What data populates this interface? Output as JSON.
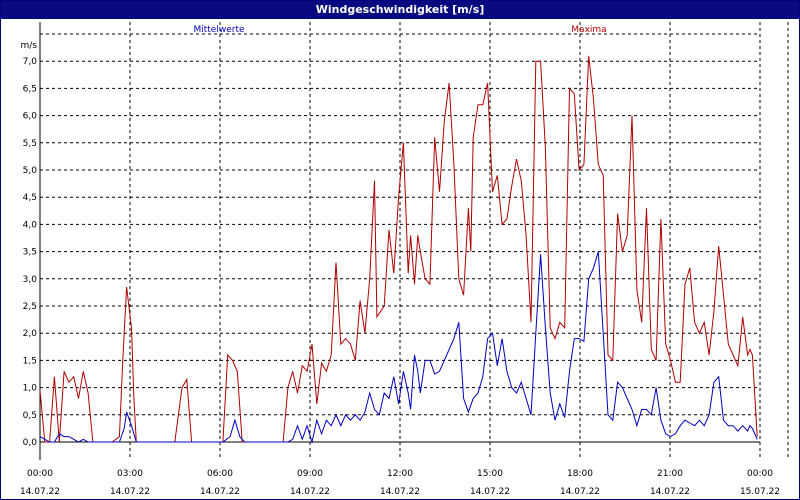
{
  "window": {
    "title": "Windgeschwindigkeit [m/s]"
  },
  "chart_data": {
    "type": "line",
    "title": "Windgeschwindigkeit [m/s]",
    "ylabel": "m/s",
    "ylim": [
      0,
      7.5
    ],
    "xlim": [
      0,
      1440
    ],
    "grid": true,
    "x_tick_positions_min": [
      0,
      180,
      360,
      540,
      720,
      900,
      1080,
      1260,
      1440
    ],
    "y_ticks": [
      "0,0",
      "0,5",
      "1,0",
      "1,5",
      "2,0",
      "2,5",
      "3,0",
      "3,5",
      "4,0",
      "4,5",
      "5,0",
      "5,5",
      "6,0",
      "6,5",
      "7,0"
    ],
    "x_ticks": [
      {
        "time": "00:00",
        "date": "14.07.22"
      },
      {
        "time": "03:00",
        "date": "14.07.22"
      },
      {
        "time": "06:00",
        "date": "14.07.22"
      },
      {
        "time": "09:00",
        "date": "14.07.22"
      },
      {
        "time": "12:00",
        "date": "14.07.22"
      },
      {
        "time": "15:00",
        "date": "14.07.22"
      },
      {
        "time": "18:00",
        "date": "14.07.22"
      },
      {
        "time": "21:00",
        "date": "14.07.22"
      },
      {
        "time": "00:00",
        "date": "15.07.22"
      }
    ],
    "series": [
      {
        "name": "Mittelwerte",
        "color": "#0000c0",
        "points": [
          [
            0,
            0.1
          ],
          [
            10,
            0.05
          ],
          [
            20,
            0.0
          ],
          [
            30,
            0.0
          ],
          [
            40,
            0.15
          ],
          [
            50,
            0.1
          ],
          [
            60,
            0.1
          ],
          [
            70,
            0.05
          ],
          [
            80,
            0.0
          ],
          [
            90,
            0.05
          ],
          [
            100,
            0.0
          ],
          [
            110,
            0.0
          ],
          [
            120,
            0.0
          ],
          [
            150,
            0.0
          ],
          [
            165,
            0.0
          ],
          [
            175,
            0.25
          ],
          [
            180,
            0.55
          ],
          [
            190,
            0.3
          ],
          [
            200,
            0.0
          ],
          [
            220,
            0.0
          ],
          [
            300,
            0.0
          ],
          [
            360,
            0.0
          ],
          [
            380,
            0.0
          ],
          [
            395,
            0.1
          ],
          [
            405,
            0.4
          ],
          [
            415,
            0.1
          ],
          [
            425,
            0.0
          ],
          [
            500,
            0.0
          ],
          [
            515,
            0.0
          ],
          [
            525,
            0.05
          ],
          [
            535,
            0.3
          ],
          [
            545,
            0.05
          ],
          [
            555,
            0.3
          ],
          [
            565,
            0.0
          ],
          [
            575,
            0.4
          ],
          [
            585,
            0.15
          ],
          [
            595,
            0.4
          ],
          [
            605,
            0.3
          ],
          [
            615,
            0.5
          ],
          [
            625,
            0.3
          ],
          [
            635,
            0.5
          ],
          [
            645,
            0.4
          ],
          [
            655,
            0.5
          ],
          [
            665,
            0.4
          ],
          [
            675,
            0.55
          ],
          [
            685,
            0.9
          ],
          [
            695,
            0.6
          ],
          [
            705,
            0.5
          ],
          [
            715,
            0.9
          ],
          [
            725,
            0.8
          ],
          [
            735,
            1.2
          ],
          [
            745,
            0.7
          ],
          [
            755,
            1.3
          ],
          [
            765,
            0.9
          ],
          [
            770,
            0.6
          ],
          [
            778,
            1.6
          ],
          [
            785,
            1.3
          ],
          [
            790,
            0.9
          ],
          [
            800,
            1.5
          ],
          [
            810,
            1.5
          ],
          [
            820,
            1.25
          ],
          [
            830,
            1.3
          ],
          [
            840,
            1.5
          ],
          [
            850,
            1.7
          ],
          [
            860,
            1.9
          ],
          [
            870,
            2.2
          ],
          [
            880,
            0.8
          ],
          [
            890,
            0.55
          ],
          [
            900,
            0.8
          ],
          [
            910,
            0.9
          ],
          [
            920,
            1.2
          ],
          [
            930,
            1.9
          ],
          [
            940,
            2.0
          ],
          [
            950,
            1.4
          ],
          [
            960,
            1.9
          ],
          [
            970,
            1.3
          ],
          [
            980,
            1.0
          ],
          [
            990,
            0.9
          ],
          [
            1000,
            1.1
          ],
          [
            1010,
            0.8
          ],
          [
            1020,
            0.5
          ],
          [
            1030,
            2.0
          ],
          [
            1040,
            3.45
          ],
          [
            1050,
            2.1
          ],
          [
            1060,
            0.9
          ],
          [
            1070,
            0.4
          ],
          [
            1080,
            0.7
          ],
          [
            1090,
            0.45
          ],
          [
            1100,
            1.3
          ],
          [
            1110,
            1.9
          ],
          [
            1120,
            1.9
          ],
          [
            1130,
            1.85
          ],
          [
            1140,
            3.0
          ],
          [
            1150,
            3.2
          ],
          [
            1160,
            3.5
          ],
          [
            1170,
            2.0
          ],
          [
            1180,
            0.5
          ],
          [
            1190,
            0.4
          ],
          [
            1200,
            1.1
          ],
          [
            1210,
            1.0
          ],
          [
            1220,
            0.8
          ],
          [
            1230,
            0.6
          ],
          [
            1240,
            0.3
          ],
          [
            1250,
            0.6
          ],
          [
            1260,
            0.6
          ],
          [
            1270,
            0.5
          ],
          [
            1280,
            1.0
          ],
          [
            1290,
            0.4
          ],
          [
            1300,
            0.15
          ],
          [
            1310,
            0.1
          ],
          [
            1320,
            0.15
          ],
          [
            1330,
            0.3
          ],
          [
            1340,
            0.4
          ],
          [
            1350,
            0.35
          ],
          [
            1360,
            0.3
          ],
          [
            1370,
            0.4
          ],
          [
            1380,
            0.3
          ],
          [
            1390,
            0.5
          ],
          [
            1400,
            1.1
          ],
          [
            1410,
            1.2
          ],
          [
            1420,
            0.4
          ],
          [
            1430,
            0.3
          ],
          [
            1440,
            0.3
          ],
          [
            1450,
            0.2
          ],
          [
            1460,
            0.3
          ],
          [
            1470,
            0.2
          ],
          [
            1475,
            0.3
          ],
          [
            1480,
            0.25
          ],
          [
            1490,
            0.05
          ]
        ]
      },
      {
        "name": "Maxima",
        "color": "#b00000",
        "points": [
          [
            0,
            0.95
          ],
          [
            10,
            0.0
          ],
          [
            20,
            0.0
          ],
          [
            30,
            1.2
          ],
          [
            40,
            0.0
          ],
          [
            50,
            1.3
          ],
          [
            60,
            1.1
          ],
          [
            70,
            1.2
          ],
          [
            80,
            0.8
          ],
          [
            90,
            1.3
          ],
          [
            100,
            0.9
          ],
          [
            110,
            0.0
          ],
          [
            120,
            0.0
          ],
          [
            150,
            0.0
          ],
          [
            165,
            0.1
          ],
          [
            172,
            1.5
          ],
          [
            180,
            2.85
          ],
          [
            190,
            2.1
          ],
          [
            195,
            0.8
          ],
          [
            200,
            0.0
          ],
          [
            220,
            0.0
          ],
          [
            280,
            0.0
          ],
          [
            295,
            1.0
          ],
          [
            305,
            1.15
          ],
          [
            315,
            0.0
          ],
          [
            325,
            0.0
          ],
          [
            380,
            0.0
          ],
          [
            390,
            1.6
          ],
          [
            400,
            1.5
          ],
          [
            410,
            1.3
          ],
          [
            420,
            0.0
          ],
          [
            500,
            0.0
          ],
          [
            505,
            0.0
          ],
          [
            515,
            1.0
          ],
          [
            525,
            1.3
          ],
          [
            535,
            0.9
          ],
          [
            545,
            1.4
          ],
          [
            555,
            1.3
          ],
          [
            565,
            1.8
          ],
          [
            575,
            0.7
          ],
          [
            585,
            1.45
          ],
          [
            595,
            1.3
          ],
          [
            605,
            1.6
          ],
          [
            615,
            3.3
          ],
          [
            625,
            1.8
          ],
          [
            635,
            1.9
          ],
          [
            645,
            1.8
          ],
          [
            655,
            1.5
          ],
          [
            665,
            2.6
          ],
          [
            675,
            2.0
          ],
          [
            685,
            3.0
          ],
          [
            695,
            4.8
          ],
          [
            700,
            2.3
          ],
          [
            715,
            2.5
          ],
          [
            725,
            3.9
          ],
          [
            735,
            3.1
          ],
          [
            745,
            4.5
          ],
          [
            755,
            5.5
          ],
          [
            765,
            3.1
          ],
          [
            770,
            3.8
          ],
          [
            778,
            2.9
          ],
          [
            785,
            3.8
          ],
          [
            790,
            3.5
          ],
          [
            800,
            3.0
          ],
          [
            810,
            2.9
          ],
          [
            820,
            5.6
          ],
          [
            830,
            4.6
          ],
          [
            840,
            5.9
          ],
          [
            850,
            6.6
          ],
          [
            860,
            5.1
          ],
          [
            870,
            3.0
          ],
          [
            880,
            2.7
          ],
          [
            890,
            4.3
          ],
          [
            895,
            3.5
          ],
          [
            900,
            5.6
          ],
          [
            910,
            6.2
          ],
          [
            920,
            6.2
          ],
          [
            930,
            6.6
          ],
          [
            940,
            4.6
          ],
          [
            950,
            4.9
          ],
          [
            960,
            4.0
          ],
          [
            970,
            4.1
          ],
          [
            980,
            4.7
          ],
          [
            990,
            5.2
          ],
          [
            1000,
            4.8
          ],
          [
            1010,
            3.8
          ],
          [
            1020,
            2.2
          ],
          [
            1030,
            7.0
          ],
          [
            1040,
            7.0
          ],
          [
            1050,
            5.4
          ],
          [
            1060,
            2.1
          ],
          [
            1070,
            1.9
          ],
          [
            1080,
            2.2
          ],
          [
            1090,
            2.1
          ],
          [
            1100,
            6.5
          ],
          [
            1110,
            6.4
          ],
          [
            1120,
            5.0
          ],
          [
            1130,
            5.1
          ],
          [
            1140,
            7.1
          ],
          [
            1150,
            6.3
          ],
          [
            1160,
            5.1
          ],
          [
            1170,
            4.9
          ],
          [
            1180,
            1.6
          ],
          [
            1190,
            1.5
          ],
          [
            1200,
            4.2
          ],
          [
            1210,
            3.5
          ],
          [
            1220,
            3.8
          ],
          [
            1230,
            6.0
          ],
          [
            1240,
            2.8
          ],
          [
            1250,
            2.2
          ],
          [
            1260,
            4.3
          ],
          [
            1270,
            1.7
          ],
          [
            1280,
            1.5
          ],
          [
            1290,
            4.1
          ],
          [
            1300,
            1.8
          ],
          [
            1310,
            1.5
          ],
          [
            1320,
            1.1
          ],
          [
            1330,
            1.1
          ],
          [
            1340,
            2.9
          ],
          [
            1350,
            3.2
          ],
          [
            1360,
            2.2
          ],
          [
            1370,
            2.0
          ],
          [
            1380,
            2.2
          ],
          [
            1390,
            1.6
          ],
          [
            1400,
            2.4
          ],
          [
            1410,
            3.6
          ],
          [
            1420,
            2.7
          ],
          [
            1430,
            1.8
          ],
          [
            1440,
            1.6
          ],
          [
            1450,
            1.4
          ],
          [
            1460,
            2.3
          ],
          [
            1470,
            1.6
          ],
          [
            1475,
            1.7
          ],
          [
            1480,
            1.6
          ],
          [
            1490,
            0.1
          ]
        ]
      }
    ]
  }
}
